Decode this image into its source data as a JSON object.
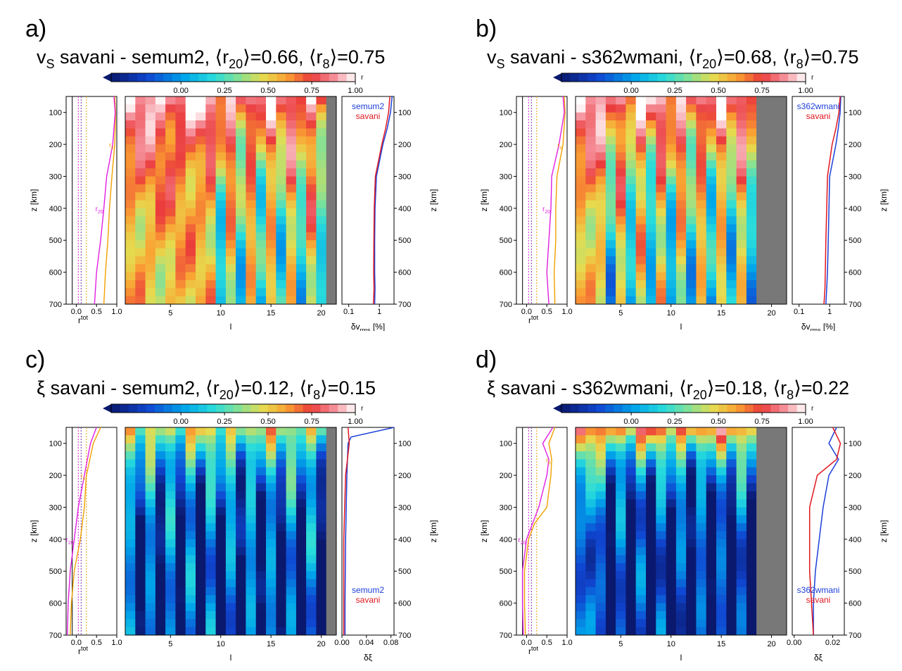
{
  "chart_data": [
    {
      "type": "heatmap",
      "panel_letter": "a)",
      "title": {
        "quantity": "v",
        "quantity_sub": "S",
        "pair": "savani - semum2,",
        "r20_value": "=0.66,",
        "r8_value": "=0.75"
      },
      "colorbar": {
        "label": "r",
        "ticks": [
          "0.00",
          "0.25",
          "0.50",
          "0.75",
          "1.00"
        ],
        "range": [
          -0.4,
          1.0
        ]
      },
      "xlabel": "l",
      "x_ticks": [
        5,
        10,
        15,
        20
      ],
      "lmax_valid": 20,
      "ylabel": "z [km]",
      "ylim": [
        50,
        700
      ],
      "y_ticks": [
        100,
        200,
        300,
        400,
        500,
        600,
        700
      ],
      "pattern": {
        "surface": 0.97,
        "decay_depth": 230,
        "floor": 0.5,
        "odd_amp": 0.45,
        "odd_start": 9
      },
      "left_panel": {
        "xlabel": "r",
        "xlabel_sup": "tot",
        "x_ticks": [
          "0.0",
          "0.5",
          "1.0"
        ],
        "r20_label": "r",
        "r20_sub": "20",
        "r8_label": "r",
        "r8_sub": "8",
        "r20": [
          [
            50,
            0.93
          ],
          [
            100,
            0.96
          ],
          [
            200,
            0.9
          ],
          [
            300,
            0.75
          ],
          [
            400,
            0.68
          ],
          [
            500,
            0.6
          ],
          [
            600,
            0.5
          ],
          [
            700,
            0.45
          ]
        ],
        "r8": [
          [
            50,
            0.95
          ],
          [
            100,
            0.97
          ],
          [
            200,
            0.95
          ],
          [
            300,
            0.88
          ],
          [
            400,
            0.82
          ],
          [
            500,
            0.78
          ],
          [
            600,
            0.72
          ],
          [
            700,
            0.68
          ]
        ]
      },
      "right_panel": {
        "xlabel": "δv",
        "xlabel_sub": "rms",
        "xlabel_unit": " [%]",
        "x_ticks": [
          "0.1",
          "1"
        ],
        "scale": "log",
        "xlim": [
          0.06,
          3
        ],
        "legend_position": "top",
        "series": [
          {
            "name": "semum2",
            "color": "#1c3fd8",
            "points": [
              [
                50,
                2.6
              ],
              [
                100,
                2.3
              ],
              [
                150,
                1.8
              ],
              [
                200,
                1.3
              ],
              [
                300,
                0.8
              ],
              [
                400,
                0.72
              ],
              [
                500,
                0.7
              ],
              [
                600,
                0.7
              ],
              [
                650,
                0.72
              ],
              [
                700,
                0.7
              ]
            ]
          },
          {
            "name": "savani",
            "color": "#e0161e",
            "points": [
              [
                50,
                2.2
              ],
              [
                100,
                2.0
              ],
              [
                150,
                1.6
              ],
              [
                200,
                1.2
              ],
              [
                300,
                0.74
              ],
              [
                400,
                0.68
              ],
              [
                500,
                0.66
              ],
              [
                600,
                0.65
              ],
              [
                650,
                0.67
              ],
              [
                700,
                0.64
              ]
            ]
          }
        ]
      }
    },
    {
      "type": "heatmap",
      "panel_letter": "b)",
      "title": {
        "quantity": "v",
        "quantity_sub": "S",
        "pair": "savani - s362wmani,",
        "r20_value": "=0.68,",
        "r8_value": "=0.75"
      },
      "colorbar": {
        "label": "r",
        "ticks": [
          "0.00",
          "0.25",
          "0.50",
          "0.75",
          "1.00"
        ],
        "range": [
          -0.4,
          1.0
        ]
      },
      "xlabel": "l",
      "x_ticks": [
        5,
        10,
        15,
        20
      ],
      "lmax_valid": 18,
      "ylabel": "z [km]",
      "ylim": [
        50,
        700
      ],
      "y_ticks": [
        100,
        200,
        300,
        400,
        500,
        600,
        700
      ],
      "pattern": {
        "surface": 0.98,
        "decay_depth": 250,
        "floor": 0.45,
        "odd_amp": 0.5,
        "odd_start": 3
      },
      "left_panel": {
        "xlabel": "r",
        "xlabel_sup": "tot",
        "x_ticks": [
          "0.0",
          "0.5",
          "1.0"
        ],
        "r20_label": "r",
        "r20_sub": "20",
        "r8_label": "r",
        "r8_sub": "8",
        "r20": [
          [
            50,
            0.9
          ],
          [
            100,
            0.93
          ],
          [
            200,
            0.8
          ],
          [
            300,
            0.62
          ],
          [
            400,
            0.6
          ],
          [
            500,
            0.55
          ],
          [
            600,
            0.5
          ],
          [
            700,
            0.55
          ]
        ],
        "r8": [
          [
            50,
            0.93
          ],
          [
            100,
            0.95
          ],
          [
            200,
            0.9
          ],
          [
            300,
            0.75
          ],
          [
            400,
            0.72
          ],
          [
            500,
            0.72
          ],
          [
            600,
            0.68
          ],
          [
            700,
            0.7
          ]
        ]
      },
      "right_panel": {
        "xlabel": "δv",
        "xlabel_sub": "rms",
        "xlabel_unit": " [%]",
        "x_ticks": [
          "0.1",
          "1"
        ],
        "scale": "log",
        "xlim": [
          0.06,
          3
        ],
        "legend_position": "top",
        "series": [
          {
            "name": "s362wmani",
            "color": "#1c3fd8",
            "points": [
              [
                50,
                2.3
              ],
              [
                100,
                2.2
              ],
              [
                150,
                1.9
              ],
              [
                200,
                1.6
              ],
              [
                300,
                1.0
              ],
              [
                400,
                0.95
              ],
              [
                500,
                0.9
              ],
              [
                600,
                0.85
              ],
              [
                650,
                0.8
              ],
              [
                700,
                0.75
              ]
            ]
          },
          {
            "name": "savani",
            "color": "#e0161e",
            "points": [
              [
                50,
                2.2
              ],
              [
                100,
                2.0
              ],
              [
                150,
                1.6
              ],
              [
                200,
                1.2
              ],
              [
                300,
                0.85
              ],
              [
                400,
                0.8
              ],
              [
                500,
                0.75
              ],
              [
                600,
                0.72
              ],
              [
                650,
                0.7
              ],
              [
                700,
                0.65
              ]
            ]
          }
        ]
      }
    },
    {
      "type": "heatmap",
      "panel_letter": "c)",
      "title": {
        "quantity": "ξ",
        "quantity_sub": "",
        "pair": "savani - semum2,",
        "r20_value": "=0.12,",
        "r8_value": "=0.15"
      },
      "colorbar": {
        "label": "r",
        "ticks": [
          "0.00",
          "0.25",
          "0.50",
          "0.75",
          "1.00"
        ],
        "range": [
          -0.4,
          1.0
        ]
      },
      "xlabel": "l",
      "x_ticks": [
        5,
        10,
        15,
        20
      ],
      "lmax_valid": 20,
      "ylabel": "z [km]",
      "ylim": [
        50,
        700
      ],
      "y_ticks": [
        100,
        200,
        300,
        400,
        500,
        600,
        700
      ],
      "pattern": {
        "surface": 0.55,
        "decay_depth": 150,
        "floor": -0.05,
        "odd_amp": 0.5,
        "odd_start": 1
      },
      "left_panel": {
        "xlabel": "r",
        "xlabel_sup": "tot",
        "x_ticks": [
          "0.0",
          "0.5",
          "1.0"
        ],
        "r20_label": "r",
        "r20_sub": "20",
        "r8_label": "r",
        "r8_sub": "8",
        "r20": [
          [
            50,
            0.5
          ],
          [
            100,
            0.35
          ],
          [
            200,
            0.2
          ],
          [
            300,
            0.05
          ],
          [
            400,
            -0.05
          ],
          [
            500,
            -0.15
          ],
          [
            600,
            -0.2
          ],
          [
            700,
            -0.22
          ]
        ],
        "r8": [
          [
            50,
            0.6
          ],
          [
            100,
            0.42
          ],
          [
            200,
            0.25
          ],
          [
            300,
            0.2
          ],
          [
            400,
            0.1
          ],
          [
            500,
            -0.05
          ],
          [
            600,
            -0.12
          ],
          [
            700,
            -0.15
          ]
        ]
      },
      "right_panel": {
        "xlabel": "δξ",
        "xlabel_sub": "",
        "xlabel_unit": "",
        "x_ticks": [
          "0.00",
          "0.04",
          "0.08"
        ],
        "scale": "linear",
        "xlim": [
          0,
          0.085
        ],
        "legend_position": "bottom",
        "series": [
          {
            "name": "semum2",
            "color": "#1c3fd8",
            "points": [
              [
                50,
                0.085
              ],
              [
                80,
                0.015
              ],
              [
                100,
                0.01
              ],
              [
                200,
                0.008
              ],
              [
                400,
                0.006
              ],
              [
                600,
                0.005
              ],
              [
                700,
                0.005
              ]
            ]
          },
          {
            "name": "savani",
            "color": "#e0161e",
            "points": [
              [
                50,
                0.01
              ],
              [
                100,
                0.012
              ],
              [
                200,
                0.006
              ],
              [
                400,
                0.003
              ],
              [
                600,
                0.003
              ],
              [
                700,
                0.003
              ]
            ]
          }
        ]
      }
    },
    {
      "type": "heatmap",
      "panel_letter": "d)",
      "title": {
        "quantity": "ξ",
        "quantity_sub": "",
        "pair": "savani - s362wmani,",
        "r20_value": "=0.18,",
        "r8_value": "=0.22"
      },
      "colorbar": {
        "label": "r",
        "ticks": [
          "0.00",
          "0.25",
          "0.50",
          "0.75",
          "1.00"
        ],
        "range": [
          -0.4,
          1.0
        ]
      },
      "xlabel": "l",
      "x_ticks": [
        5,
        10,
        15,
        20
      ],
      "lmax_valid": 18,
      "ylabel": "z [km]",
      "ylim": [
        50,
        700
      ],
      "y_ticks": [
        100,
        200,
        300,
        400,
        500,
        600,
        700
      ],
      "pattern": {
        "surface": 0.8,
        "decay_depth": 120,
        "floor": -0.15,
        "odd_amp": 0.45,
        "odd_start": 4
      },
      "left_panel": {
        "xlabel": "r",
        "xlabel_sup": "tot",
        "x_ticks": [
          "0.0",
          "0.5",
          "1.0"
        ],
        "r20_label": "r",
        "r20_sub": "20",
        "r8_label": "r",
        "r8_sub": "8",
        "r20": [
          [
            50,
            0.65
          ],
          [
            100,
            0.4
          ],
          [
            150,
            0.55
          ],
          [
            200,
            0.5
          ],
          [
            300,
            0.3
          ],
          [
            400,
            0.0
          ],
          [
            500,
            -0.1
          ],
          [
            600,
            -0.1
          ],
          [
            700,
            -0.08
          ]
        ],
        "r8": [
          [
            50,
            0.7
          ],
          [
            100,
            0.55
          ],
          [
            150,
            0.62
          ],
          [
            200,
            0.6
          ],
          [
            300,
            0.5
          ],
          [
            350,
            0.2
          ],
          [
            400,
            0.05
          ],
          [
            500,
            -0.05
          ],
          [
            600,
            -0.05
          ],
          [
            700,
            -0.03
          ]
        ]
      },
      "right_panel": {
        "xlabel": "δξ",
        "xlabel_sub": "",
        "xlabel_unit": "",
        "x_ticks": [
          "0.00",
          "0.02"
        ],
        "scale": "linear",
        "xlim": [
          -0.001,
          0.026
        ],
        "legend_position": "bottom",
        "series": [
          {
            "name": "s362wmani",
            "color": "#1c3fd8",
            "points": [
              [
                50,
                0.022
              ],
              [
                100,
                0.018
              ],
              [
                150,
                0.023
              ],
              [
                200,
                0.018
              ],
              [
                300,
                0.015
              ],
              [
                400,
                0.013
              ],
              [
                500,
                0.011
              ],
              [
                600,
                0.01
              ],
              [
                700,
                0.01
              ]
            ]
          },
          {
            "name": "savani",
            "color": "#e0161e",
            "points": [
              [
                50,
                0.02
              ],
              [
                100,
                0.024
              ],
              [
                150,
                0.022
              ],
              [
                200,
                0.012
              ],
              [
                300,
                0.008
              ],
              [
                400,
                0.008
              ],
              [
                500,
                0.008
              ],
              [
                600,
                0.009
              ],
              [
                700,
                0.01
              ]
            ]
          }
        ]
      }
    }
  ]
}
